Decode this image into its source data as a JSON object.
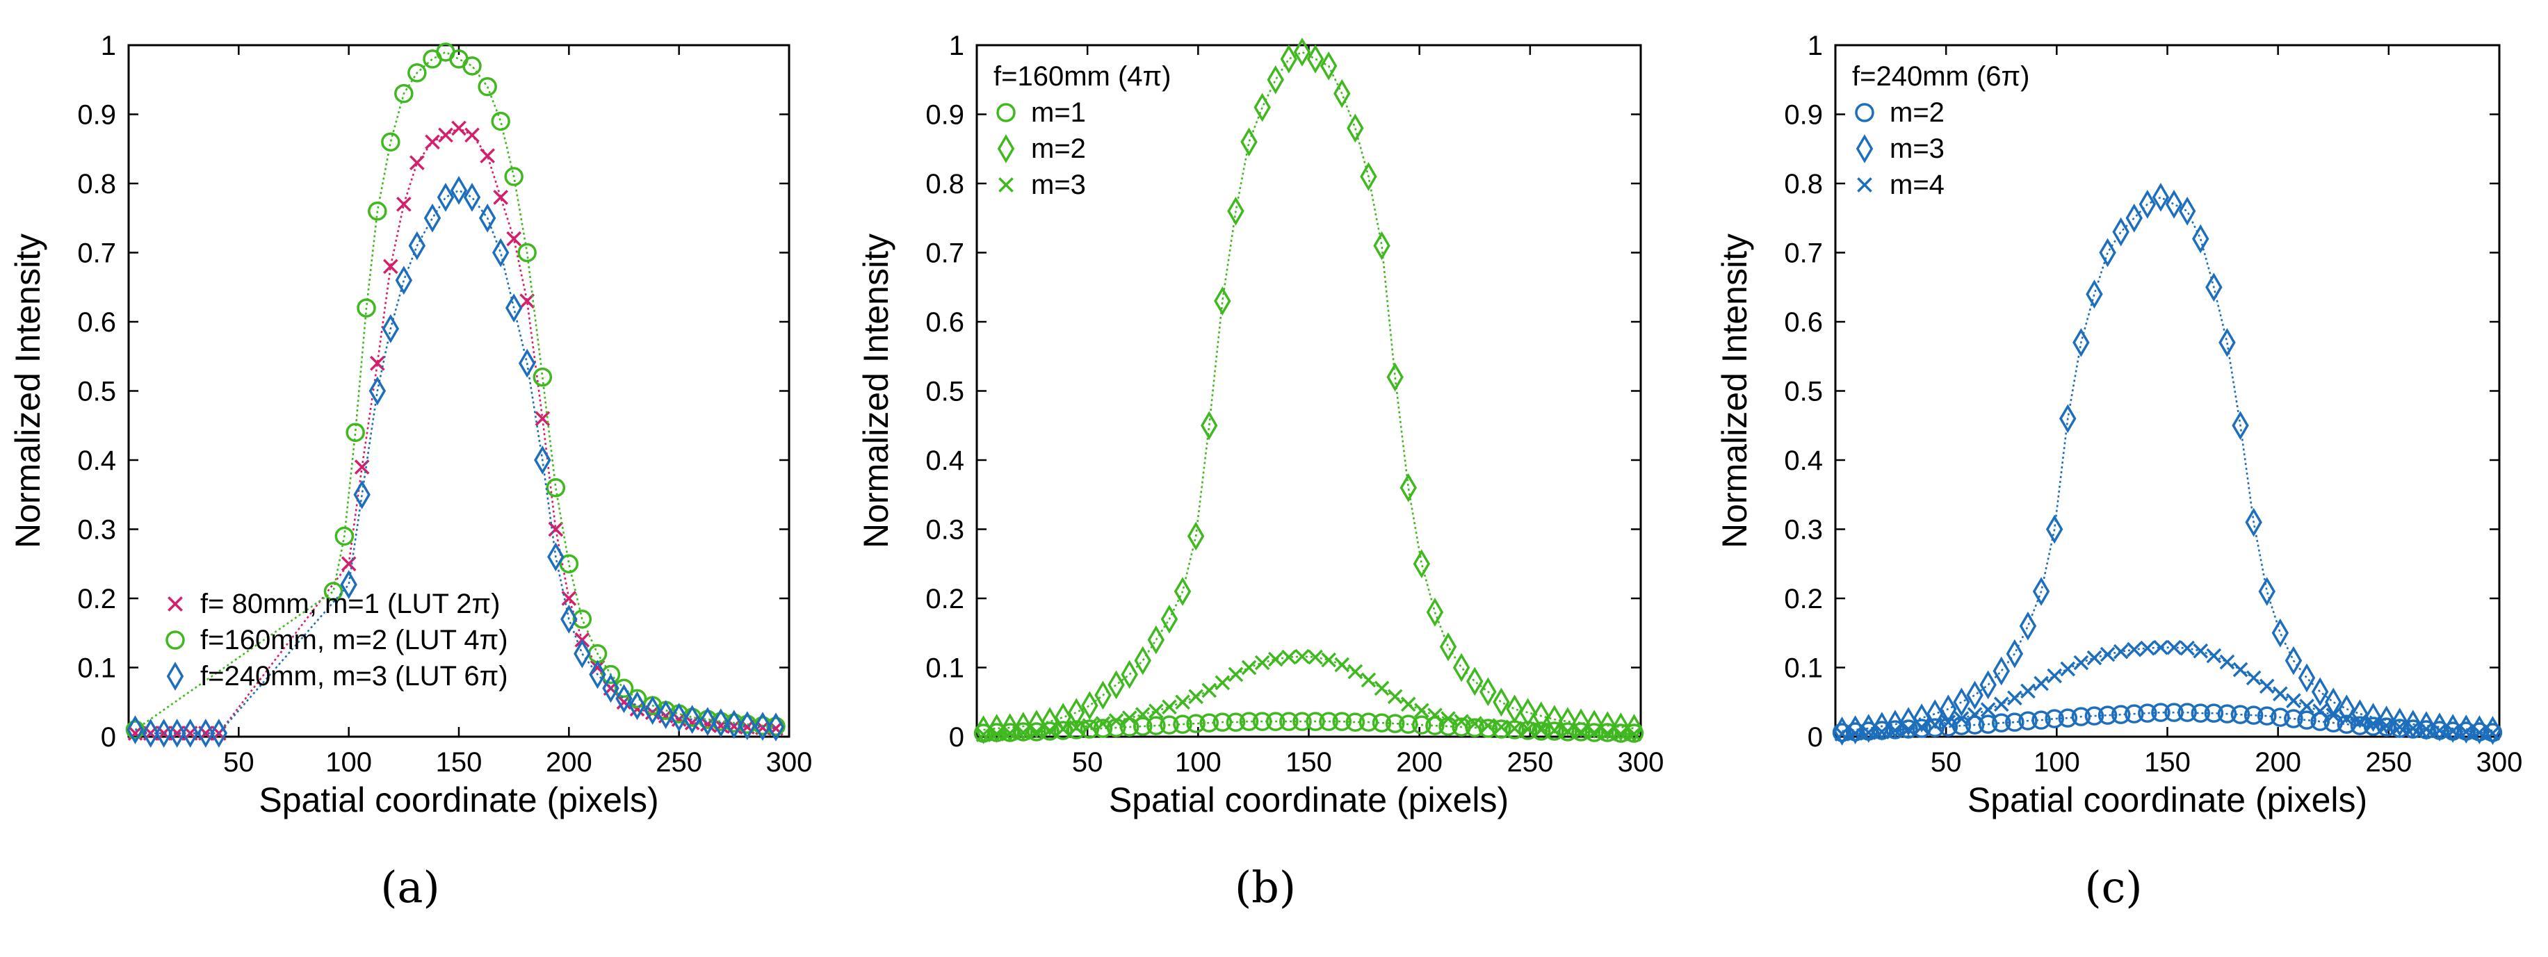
{
  "colors": {
    "magenta": "#d41f6b",
    "green": "#3fb91f",
    "blue": "#1d6fbd"
  },
  "chart_data": [
    {
      "id": "a",
      "type": "scatter",
      "panel_label": "(a)",
      "title": "",
      "xlabel": "Spatial coordinate (pixels)",
      "ylabel": "Normalized Intensity",
      "xlim": [
        0,
        300
      ],
      "ylim": [
        0,
        1
      ],
      "xticks": [
        "50",
        "100",
        "150",
        "200",
        "250",
        "300"
      ],
      "yticks": [
        "0",
        "0.1",
        "0.2",
        "0.3",
        "0.4",
        "0.5",
        "0.6",
        "0.7",
        "0.8",
        "0.9",
        "1"
      ],
      "legend_placement": "bottom-left",
      "legend_title": "",
      "series": [
        {
          "name": "f= 80mm, m=1 (LUT 2π)",
          "marker": "x",
          "color_key": "magenta",
          "x": [
            3,
            10,
            16,
            22,
            28,
            35,
            41,
            100,
            106,
            113,
            119,
            125,
            131,
            138,
            144,
            150,
            156,
            163,
            169,
            175,
            181,
            188,
            194,
            200,
            206,
            213,
            219,
            225,
            231,
            238,
            244,
            250,
            256,
            263,
            269,
            275,
            281,
            288,
            294
          ],
          "y": [
            0.005,
            0.005,
            0.005,
            0.005,
            0.005,
            0.005,
            0.005,
            0.25,
            0.39,
            0.54,
            0.68,
            0.77,
            0.83,
            0.86,
            0.87,
            0.88,
            0.87,
            0.84,
            0.78,
            0.72,
            0.63,
            0.46,
            0.3,
            0.2,
            0.14,
            0.1,
            0.07,
            0.05,
            0.04,
            0.035,
            0.03,
            0.025,
            0.02,
            0.018,
            0.016,
            0.015,
            0.014,
            0.013,
            0.012
          ]
        },
        {
          "name": "f=160mm, m=2 (LUT 4π)",
          "marker": "o",
          "color_key": "green",
          "x": [
            3,
            93,
            98,
            103,
            108,
            113,
            119,
            125,
            131,
            138,
            144,
            150,
            156,
            163,
            169,
            175,
            181,
            188,
            194,
            200,
            206,
            213,
            219,
            225,
            231,
            238,
            244,
            250,
            256,
            263,
            269,
            275,
            281,
            288,
            294
          ],
          "y": [
            0.01,
            0.21,
            0.29,
            0.44,
            0.62,
            0.76,
            0.86,
            0.93,
            0.96,
            0.98,
            0.99,
            0.98,
            0.97,
            0.94,
            0.89,
            0.81,
            0.7,
            0.52,
            0.36,
            0.25,
            0.17,
            0.12,
            0.09,
            0.07,
            0.055,
            0.045,
            0.038,
            0.033,
            0.028,
            0.025,
            0.022,
            0.02,
            0.018,
            0.016,
            0.015
          ]
        },
        {
          "name": "f=240mm, m=3 (LUT 6π)",
          "marker": "d",
          "color_key": "blue",
          "x": [
            3,
            10,
            16,
            22,
            28,
            35,
            41,
            100,
            106,
            113,
            119,
            125,
            131,
            138,
            144,
            150,
            156,
            163,
            169,
            175,
            181,
            188,
            194,
            200,
            206,
            213,
            219,
            225,
            231,
            238,
            244,
            250,
            256,
            263,
            269,
            275,
            281,
            288,
            294
          ],
          "y": [
            0.01,
            0.005,
            0.005,
            0.005,
            0.005,
            0.005,
            0.005,
            0.22,
            0.35,
            0.5,
            0.59,
            0.66,
            0.71,
            0.75,
            0.78,
            0.79,
            0.78,
            0.75,
            0.7,
            0.62,
            0.54,
            0.4,
            0.26,
            0.17,
            0.12,
            0.09,
            0.07,
            0.055,
            0.045,
            0.038,
            0.032,
            0.028,
            0.025,
            0.022,
            0.02,
            0.018,
            0.016,
            0.015,
            0.014
          ]
        }
      ]
    },
    {
      "id": "b",
      "type": "scatter",
      "panel_label": "(b)",
      "title": "",
      "xlabel": "Spatial coordinate (pixels)",
      "ylabel": "Normalized Intensity",
      "xlim": [
        0,
        300
      ],
      "ylim": [
        0,
        1
      ],
      "xticks": [
        "50",
        "100",
        "150",
        "200",
        "250",
        "300"
      ],
      "yticks": [
        "0",
        "0.1",
        "0.2",
        "0.3",
        "0.4",
        "0.5",
        "0.6",
        "0.7",
        "0.8",
        "0.9",
        "1"
      ],
      "legend_placement": "top-left",
      "legend_title": "f=160mm (4π)",
      "series": [
        {
          "name": "m=1",
          "marker": "o",
          "color_key": "green",
          "x": [
            3,
            9,
            15,
            21,
            27,
            33,
            39,
            45,
            51,
            57,
            63,
            69,
            75,
            81,
            87,
            93,
            99,
            105,
            111,
            117,
            123,
            129,
            135,
            141,
            147,
            153,
            159,
            165,
            171,
            177,
            183,
            189,
            195,
            201,
            207,
            213,
            219,
            225,
            231,
            237,
            243,
            249,
            255,
            261,
            267,
            273,
            279,
            285,
            291,
            297
          ],
          "y": [
            0.005,
            0.006,
            0.006,
            0.007,
            0.007,
            0.008,
            0.009,
            0.01,
            0.011,
            0.012,
            0.013,
            0.014,
            0.015,
            0.016,
            0.017,
            0.018,
            0.019,
            0.02,
            0.021,
            0.021,
            0.022,
            0.022,
            0.022,
            0.022,
            0.022,
            0.022,
            0.022,
            0.022,
            0.021,
            0.021,
            0.02,
            0.019,
            0.018,
            0.017,
            0.016,
            0.015,
            0.014,
            0.013,
            0.012,
            0.011,
            0.01,
            0.009,
            0.008,
            0.008,
            0.007,
            0.007,
            0.006,
            0.006,
            0.005,
            0.005
          ]
        },
        {
          "name": "m=2",
          "marker": "d",
          "color_key": "green",
          "x": [
            3,
            9,
            15,
            21,
            27,
            33,
            39,
            45,
            51,
            57,
            63,
            69,
            75,
            81,
            87,
            93,
            99,
            105,
            111,
            117,
            123,
            129,
            135,
            141,
            147,
            153,
            159,
            165,
            171,
            177,
            183,
            189,
            195,
            201,
            207,
            213,
            219,
            225,
            231,
            237,
            243,
            249,
            255,
            261,
            267,
            273,
            279,
            285,
            291,
            297
          ],
          "y": [
            0.01,
            0.012,
            0.013,
            0.015,
            0.018,
            0.022,
            0.028,
            0.035,
            0.045,
            0.06,
            0.075,
            0.09,
            0.11,
            0.14,
            0.17,
            0.21,
            0.29,
            0.45,
            0.63,
            0.76,
            0.86,
            0.91,
            0.95,
            0.98,
            0.99,
            0.98,
            0.97,
            0.93,
            0.88,
            0.81,
            0.71,
            0.52,
            0.36,
            0.25,
            0.18,
            0.13,
            0.1,
            0.08,
            0.065,
            0.05,
            0.04,
            0.035,
            0.03,
            0.025,
            0.022,
            0.02,
            0.018,
            0.016,
            0.014,
            0.012
          ]
        },
        {
          "name": "m=3",
          "marker": "x",
          "color_key": "green",
          "x": [
            3,
            9,
            15,
            21,
            27,
            33,
            39,
            45,
            51,
            57,
            63,
            69,
            75,
            81,
            87,
            93,
            99,
            105,
            111,
            117,
            123,
            129,
            135,
            141,
            147,
            153,
            159,
            165,
            171,
            177,
            183,
            189,
            195,
            201,
            207,
            213,
            219,
            225,
            231,
            237,
            243,
            249,
            255,
            261,
            267,
            273,
            279,
            285,
            291,
            297
          ],
          "y": [
            0.003,
            0.004,
            0.005,
            0.006,
            0.007,
            0.009,
            0.011,
            0.013,
            0.016,
            0.019,
            0.023,
            0.027,
            0.032,
            0.037,
            0.043,
            0.05,
            0.058,
            0.067,
            0.078,
            0.09,
            0.1,
            0.107,
            0.112,
            0.115,
            0.116,
            0.115,
            0.111,
            0.104,
            0.094,
            0.082,
            0.07,
            0.058,
            0.047,
            0.038,
            0.031,
            0.026,
            0.022,
            0.019,
            0.016,
            0.014,
            0.012,
            0.011,
            0.01,
            0.009,
            0.008,
            0.007,
            0.006,
            0.005,
            0.004,
            0.004
          ]
        }
      ]
    },
    {
      "id": "c",
      "type": "scatter",
      "panel_label": "(c)",
      "title": "",
      "xlabel": "Spatial coordinate (pixels)",
      "ylabel": "Normalized Intensity",
      "xlim": [
        0,
        300
      ],
      "ylim": [
        0,
        1
      ],
      "xticks": [
        "50",
        "100",
        "150",
        "200",
        "250",
        "300"
      ],
      "yticks": [
        "0",
        "0.1",
        "0.2",
        "0.3",
        "0.4",
        "0.5",
        "0.6",
        "0.7",
        "0.8",
        "0.9",
        "1"
      ],
      "legend_placement": "top-left",
      "legend_title": "f=240mm (6π)",
      "series": [
        {
          "name": "m=2",
          "marker": "o",
          "color_key": "blue",
          "x": [
            3,
            9,
            15,
            21,
            27,
            33,
            39,
            45,
            51,
            57,
            63,
            69,
            75,
            81,
            87,
            93,
            99,
            105,
            111,
            117,
            123,
            129,
            135,
            141,
            147,
            153,
            159,
            165,
            171,
            177,
            183,
            189,
            195,
            201,
            207,
            213,
            219,
            225,
            231,
            237,
            243,
            249,
            255,
            261,
            267,
            273,
            279,
            285,
            291,
            297
          ],
          "y": [
            0.006,
            0.007,
            0.008,
            0.009,
            0.01,
            0.011,
            0.012,
            0.013,
            0.014,
            0.016,
            0.017,
            0.018,
            0.02,
            0.021,
            0.023,
            0.024,
            0.026,
            0.027,
            0.029,
            0.03,
            0.031,
            0.032,
            0.033,
            0.034,
            0.035,
            0.035,
            0.035,
            0.034,
            0.034,
            0.033,
            0.032,
            0.031,
            0.03,
            0.028,
            0.026,
            0.024,
            0.022,
            0.02,
            0.018,
            0.016,
            0.015,
            0.014,
            0.012,
            0.011,
            0.01,
            0.009,
            0.008,
            0.008,
            0.007,
            0.006
          ]
        },
        {
          "name": "m=3",
          "marker": "d",
          "color_key": "blue",
          "x": [
            3,
            9,
            15,
            21,
            27,
            33,
            39,
            45,
            51,
            57,
            63,
            69,
            75,
            81,
            87,
            93,
            99,
            105,
            111,
            117,
            123,
            129,
            135,
            141,
            147,
            153,
            159,
            165,
            171,
            177,
            183,
            189,
            195,
            201,
            207,
            213,
            219,
            225,
            231,
            237,
            243,
            249,
            255,
            261,
            267,
            273,
            279,
            285,
            291,
            297
          ],
          "y": [
            0.008,
            0.01,
            0.012,
            0.015,
            0.018,
            0.022,
            0.027,
            0.033,
            0.04,
            0.05,
            0.06,
            0.075,
            0.095,
            0.12,
            0.16,
            0.21,
            0.3,
            0.46,
            0.57,
            0.64,
            0.7,
            0.73,
            0.75,
            0.77,
            0.78,
            0.77,
            0.76,
            0.72,
            0.65,
            0.57,
            0.45,
            0.31,
            0.21,
            0.15,
            0.11,
            0.085,
            0.065,
            0.05,
            0.04,
            0.033,
            0.028,
            0.024,
            0.021,
            0.018,
            0.016,
            0.014,
            0.012,
            0.011,
            0.01,
            0.009
          ]
        },
        {
          "name": "m=4",
          "marker": "x",
          "color_key": "blue",
          "x": [
            3,
            9,
            15,
            21,
            27,
            33,
            39,
            45,
            51,
            57,
            63,
            69,
            75,
            81,
            87,
            93,
            99,
            105,
            111,
            117,
            123,
            129,
            135,
            141,
            147,
            153,
            159,
            165,
            171,
            177,
            183,
            189,
            195,
            201,
            207,
            213,
            219,
            225,
            231,
            237,
            243,
            249,
            255,
            261,
            267,
            273,
            279,
            285,
            291,
            297
          ],
          "y": [
            0.004,
            0.005,
            0.006,
            0.007,
            0.009,
            0.011,
            0.014,
            0.017,
            0.021,
            0.026,
            0.032,
            0.039,
            0.047,
            0.056,
            0.066,
            0.077,
            0.088,
            0.098,
            0.107,
            0.114,
            0.119,
            0.123,
            0.126,
            0.128,
            0.129,
            0.129,
            0.128,
            0.124,
            0.117,
            0.108,
            0.097,
            0.085,
            0.073,
            0.062,
            0.052,
            0.044,
            0.037,
            0.031,
            0.026,
            0.022,
            0.019,
            0.016,
            0.014,
            0.012,
            0.011,
            0.009,
            0.008,
            0.007,
            0.006,
            0.005
          ]
        }
      ]
    }
  ]
}
